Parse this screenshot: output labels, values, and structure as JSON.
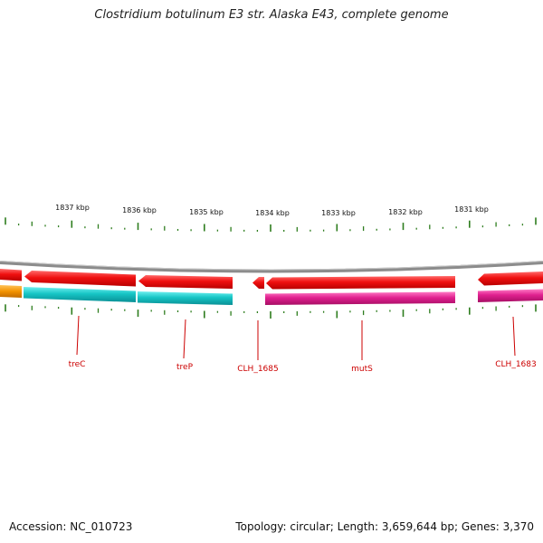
{
  "title": "Clostridium botulinum E3 str. Alaska E43, complete genome",
  "footer": {
    "accession": "Accession: NC_010723",
    "summary": "Topology: circular; Length: 3,659,644 bp; Genes: 3,370"
  },
  "ruler": {
    "labels": [
      "1837 kbp",
      "1836 kbp",
      "1835 kbp",
      "1834 kbp",
      "1833 kbp",
      "1832 kbp",
      "1831 kbp"
    ],
    "tick_color": "#2e7d1e"
  },
  "genes": {
    "labels": [
      "treC",
      "treP",
      "CLH_1685",
      "mutS",
      "CLH_1683"
    ],
    "label_color": "#cc0000"
  },
  "colors": {
    "backbone": "#8c8c8c",
    "forward_strand_red": "#ee1111",
    "cyan_feature": "#16c5c5",
    "magenta_feature": "#e0208f",
    "orange_feature": "#f39200"
  }
}
